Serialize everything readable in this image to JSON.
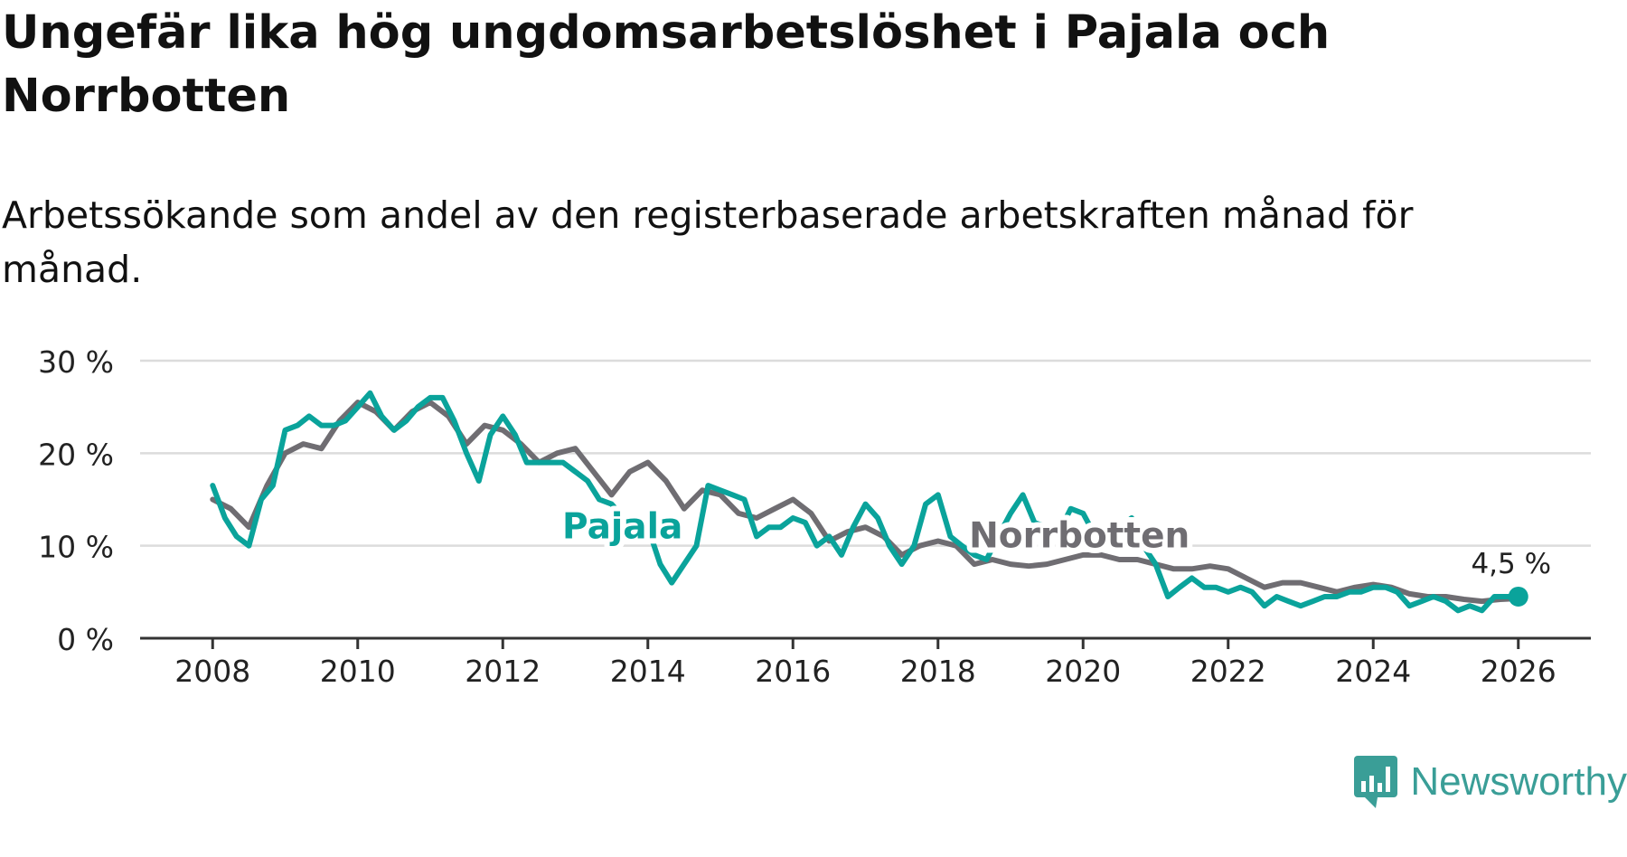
{
  "title": "Ungefär lika hög ungdomsarbetslöshet i Pajala och Norrbotten",
  "subtitle": "Arbetssökande som andel av den registerbaserade arbetskraften månad för månad.",
  "brand": "Newsworthy",
  "colors": {
    "pajala": "#0aa39b",
    "norrbotten": "#6f6d72",
    "grid": "#dcdcdc",
    "axis": "#333333",
    "text": "#222222"
  },
  "chart_data": {
    "type": "line",
    "title": "Ungefär lika hög ungdomsarbetslöshet i Pajala och Norrbotten",
    "subtitle": "Arbetssökande som andel av den registerbaserade arbetskraften månad för månad.",
    "xlabel": "",
    "ylabel": "",
    "xlim": [
      2007.0,
      2027.0
    ],
    "ylim": [
      0,
      30
    ],
    "x_ticks": [
      2008,
      2010,
      2012,
      2014,
      2016,
      2018,
      2020,
      2022,
      2024,
      2026
    ],
    "x_tick_labels": [
      "2008",
      "2010",
      "2012",
      "2014",
      "2016",
      "2018",
      "2020",
      "2022",
      "2024",
      "2026"
    ],
    "y_ticks": [
      0,
      10,
      20,
      30
    ],
    "y_tick_labels": [
      "0 %",
      "10 %",
      "20 %",
      "30 %"
    ],
    "grid": true,
    "series": [
      {
        "name": "Norrbotten",
        "label": "Norrbotten",
        "x": [
          2008.0,
          2008.25,
          2008.5,
          2008.75,
          2009.0,
          2009.25,
          2009.5,
          2009.75,
          2010.0,
          2010.25,
          2010.5,
          2010.75,
          2011.0,
          2011.25,
          2011.5,
          2011.75,
          2012.0,
          2012.25,
          2012.5,
          2012.75,
          2013.0,
          2013.25,
          2013.5,
          2013.75,
          2014.0,
          2014.25,
          2014.5,
          2014.75,
          2015.0,
          2015.25,
          2015.5,
          2015.75,
          2016.0,
          2016.25,
          2016.5,
          2016.75,
          2017.0,
          2017.25,
          2017.5,
          2017.75,
          2018.0,
          2018.25,
          2018.5,
          2018.75,
          2019.0,
          2019.25,
          2019.5,
          2019.75,
          2020.0,
          2020.25,
          2020.5,
          2020.75,
          2021.0,
          2021.25,
          2021.5,
          2021.75,
          2022.0,
          2022.25,
          2022.5,
          2022.75,
          2023.0,
          2023.25,
          2023.5,
          2023.75,
          2024.0,
          2024.25,
          2024.5,
          2024.75,
          2025.0,
          2025.25,
          2025.5,
          2025.75,
          2026.0
        ],
        "values": [
          15.0,
          14.0,
          12.0,
          16.5,
          20.0,
          21.0,
          20.5,
          23.5,
          25.5,
          24.5,
          22.5,
          24.5,
          25.5,
          24.0,
          21.0,
          23.0,
          22.5,
          21.0,
          19.0,
          20.0,
          20.5,
          18.0,
          15.5,
          18.0,
          19.0,
          17.0,
          14.0,
          16.0,
          15.5,
          13.5,
          13.0,
          14.0,
          15.0,
          13.5,
          10.5,
          11.5,
          12.0,
          11.0,
          9.0,
          10.0,
          10.5,
          10.0,
          8.0,
          8.5,
          8.0,
          7.8,
          8.0,
          8.5,
          9.0,
          9.0,
          8.5,
          8.5,
          8.0,
          7.5,
          7.5,
          7.8,
          7.5,
          6.5,
          5.5,
          6.0,
          6.0,
          5.5,
          5.0,
          5.5,
          5.8,
          5.5,
          4.8,
          4.5,
          4.5,
          4.2,
          4.0,
          4.2,
          4.3
        ]
      },
      {
        "name": "Pajala",
        "label": "Pajala",
        "x": [
          2008.0,
          2008.17,
          2008.33,
          2008.5,
          2008.67,
          2008.83,
          2009.0,
          2009.17,
          2009.33,
          2009.5,
          2009.67,
          2009.83,
          2010.0,
          2010.17,
          2010.33,
          2010.5,
          2010.67,
          2010.83,
          2011.0,
          2011.17,
          2011.33,
          2011.5,
          2011.67,
          2011.83,
          2012.0,
          2012.17,
          2012.33,
          2012.5,
          2012.67,
          2012.83,
          2013.0,
          2013.17,
          2013.33,
          2013.5,
          2013.67,
          2013.83,
          2014.0,
          2014.17,
          2014.33,
          2014.5,
          2014.67,
          2014.83,
          2015.0,
          2015.17,
          2015.33,
          2015.5,
          2015.67,
          2015.83,
          2016.0,
          2016.17,
          2016.33,
          2016.5,
          2016.67,
          2016.83,
          2017.0,
          2017.17,
          2017.33,
          2017.5,
          2017.67,
          2017.83,
          2018.0,
          2018.17,
          2018.33,
          2018.5,
          2018.67,
          2018.83,
          2019.0,
          2019.17,
          2019.33,
          2019.5,
          2019.67,
          2019.83,
          2020.0,
          2020.17,
          2020.33,
          2020.5,
          2020.67,
          2020.83,
          2021.0,
          2021.17,
          2021.33,
          2021.5,
          2021.67,
          2021.83,
          2022.0,
          2022.17,
          2022.33,
          2022.5,
          2022.67,
          2022.83,
          2023.0,
          2023.17,
          2023.33,
          2023.5,
          2023.67,
          2023.83,
          2024.0,
          2024.17,
          2024.33,
          2024.5,
          2024.67,
          2024.83,
          2025.0,
          2025.17,
          2025.33,
          2025.5,
          2025.67,
          2025.83,
          2026.0
        ],
        "values": [
          16.5,
          13.0,
          11.0,
          10.0,
          15.0,
          16.5,
          22.5,
          23.0,
          24.0,
          23.0,
          23.0,
          23.5,
          25.0,
          26.5,
          24.0,
          22.5,
          23.5,
          25.0,
          26.0,
          26.0,
          23.5,
          20.0,
          17.0,
          22.0,
          24.0,
          22.0,
          19.0,
          19.0,
          19.0,
          19.0,
          18.0,
          17.0,
          15.0,
          14.5,
          13.0,
          12.5,
          12.0,
          8.0,
          6.0,
          8.0,
          10.0,
          16.5,
          16.0,
          15.5,
          15.0,
          11.0,
          12.0,
          12.0,
          13.0,
          12.5,
          10.0,
          11.0,
          9.0,
          12.0,
          14.5,
          13.0,
          10.0,
          8.0,
          10.0,
          14.5,
          15.5,
          11.0,
          10.0,
          9.0,
          8.5,
          11.0,
          13.5,
          15.5,
          12.5,
          12.0,
          11.5,
          14.0,
          13.5,
          11.0,
          11.5,
          12.0,
          13.0,
          10.0,
          8.0,
          4.5,
          5.5,
          6.5,
          5.5,
          5.5,
          5.0,
          5.5,
          5.0,
          3.5,
          4.5,
          4.0,
          3.5,
          4.0,
          4.5,
          4.5,
          5.0,
          5.0,
          5.5,
          5.5,
          5.0,
          3.5,
          4.0,
          4.5,
          4.0,
          3.0,
          3.5,
          3.0,
          4.5,
          4.5,
          4.5
        ]
      }
    ],
    "annotations": [
      {
        "series": "Pajala",
        "x": 2026.0,
        "value": 4.5,
        "text": "4,5 %"
      }
    ]
  }
}
